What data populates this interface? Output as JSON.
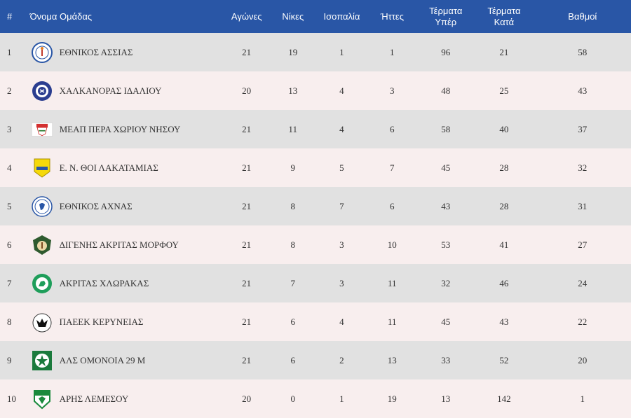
{
  "headers": {
    "pos": "#",
    "team": "Όνομα Ομάδας",
    "played": "Αγώνες",
    "wins": "Νίκες",
    "draws": "Ισοπαλία",
    "losses": "Ήττες",
    "goals_for_1": "Τέρματα",
    "goals_for_2": "Υπέρ",
    "goals_against_1": "Τέρματα",
    "goals_against_2": "Κατά",
    "points": "Βαθμοί"
  },
  "colors": {
    "header_bg": "#2956a6",
    "row_odd": "#e1e1e1",
    "row_even": "#f8eeee"
  },
  "rows": [
    {
      "pos": "1",
      "team": "ΕΘΝΙΚΟΣ ΑΣΣΙΑΣ",
      "icon": "ethnikos-assias-logo-icon",
      "played": "21",
      "wins": "19",
      "draws": "1",
      "losses": "1",
      "gf": "96",
      "ga": "21",
      "pts": "58"
    },
    {
      "pos": "2",
      "team": "ΧΑΛΚΑΝΟΡΑΣ ΙΔΑΛΙΟΥ",
      "icon": "chalkanoras-logo-icon",
      "played": "20",
      "wins": "13",
      "draws": "4",
      "losses": "3",
      "gf": "48",
      "ga": "25",
      "pts": "43"
    },
    {
      "pos": "3",
      "team": "ΜΕΑΠ ΠΕΡΑ ΧΩΡΙΟΥ ΝΗΣΟΥ",
      "icon": "meap-logo-icon",
      "played": "21",
      "wins": "11",
      "draws": "4",
      "losses": "6",
      "gf": "58",
      "ga": "40",
      "pts": "37"
    },
    {
      "pos": "4",
      "team": "Ε. Ν. ΘΟΙ ΛΑΚΑΤΑΜΙΑΣ",
      "icon": "thoi-logo-icon",
      "played": "21",
      "wins": "9",
      "draws": "5",
      "losses": "7",
      "gf": "45",
      "ga": "28",
      "pts": "32"
    },
    {
      "pos": "5",
      "team": "ΕΘΝΙΚΟΣ ΑΧΝΑΣ",
      "icon": "ethnikos-achnas-logo-icon",
      "played": "21",
      "wins": "8",
      "draws": "7",
      "losses": "6",
      "gf": "43",
      "ga": "28",
      "pts": "31"
    },
    {
      "pos": "6",
      "team": "ΔΙΓΕΝΗΣ ΑΚΡΙΤΑΣ ΜΟΡΦΟΥ",
      "icon": "digenis-logo-icon",
      "played": "21",
      "wins": "8",
      "draws": "3",
      "losses": "10",
      "gf": "53",
      "ga": "41",
      "pts": "27"
    },
    {
      "pos": "7",
      "team": "ΑΚΡΙΤΑΣ ΧΛΩΡΑΚΑΣ",
      "icon": "akritas-logo-icon",
      "played": "21",
      "wins": "7",
      "draws": "3",
      "losses": "11",
      "gf": "32",
      "ga": "46",
      "pts": "24"
    },
    {
      "pos": "8",
      "team": "ΠΑΕΕΚ ΚΕΡΥΝΕΙΑΣ",
      "icon": "paeek-logo-icon",
      "played": "21",
      "wins": "6",
      "draws": "4",
      "losses": "11",
      "gf": "45",
      "ga": "43",
      "pts": "22"
    },
    {
      "pos": "9",
      "team": "ΑΛΣ ΟΜΟΝΟΙΑ 29 Μ",
      "icon": "omonoia-logo-icon",
      "played": "21",
      "wins": "6",
      "draws": "2",
      "losses": "13",
      "gf": "33",
      "ga": "52",
      "pts": "20"
    },
    {
      "pos": "10",
      "team": "ΑΡΗΣ ΛΕΜΕΣΟΥ",
      "icon": "aris-logo-icon",
      "played": "20",
      "wins": "0",
      "draws": "1",
      "losses": "19",
      "gf": "13",
      "ga": "142",
      "pts": "1"
    }
  ]
}
